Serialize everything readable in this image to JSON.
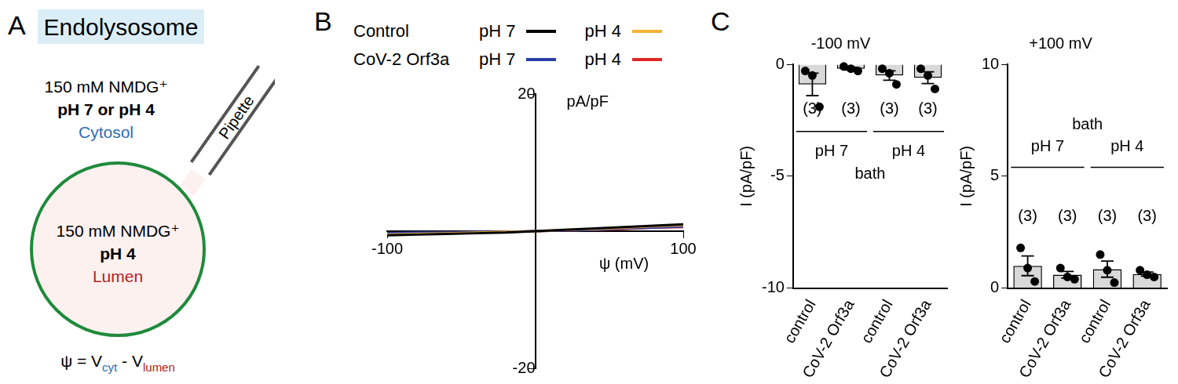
{
  "diagram": {
    "panel": "A",
    "title": "Endolysosome",
    "cytosol": {
      "solution": "150 mM NMDG⁺",
      "ph": "pH 7 or pH 4",
      "name": "Cytosol"
    },
    "pipette": "Pipette",
    "lumen": {
      "solution": "150 mM NMDG⁺",
      "ph": "pH 4",
      "name": "Lumen"
    },
    "equation": {
      "left": "ψ = V",
      "sub_1": "cyt",
      "middle": " - V",
      "sub_2": "lumen"
    }
  },
  "chart_data": [
    {
      "panel": "B",
      "type": "line",
      "x_label": "ψ (mV)",
      "y_label": "pA/pF",
      "x": [
        -100,
        -80,
        -60,
        -40,
        -20,
        0,
        20,
        40,
        60,
        80,
        100
      ],
      "series": [
        {
          "group": "Control",
          "name": "pH 7",
          "color": "#000000",
          "values": [
            -0.6,
            -0.5,
            -0.4,
            -0.3,
            -0.2,
            0,
            0.2,
            0.4,
            0.6,
            0.8,
            1.0
          ]
        },
        {
          "group": "Control",
          "name": "pH 4",
          "color": "#f5b335",
          "values": [
            -0.5,
            -0.4,
            -0.3,
            -0.2,
            -0.1,
            0,
            0.2,
            0.3,
            0.5,
            0.7,
            0.9
          ]
        },
        {
          "group": "CoV-2 Orf3a",
          "name": "pH 7",
          "color": "#2b3fa8",
          "values": [
            -0.3,
            -0.2,
            -0.2,
            -0.1,
            -0.1,
            0,
            0.1,
            0.2,
            0.4,
            0.5,
            0.7
          ]
        },
        {
          "group": "CoV-2 Orf3a",
          "name": "pH 4",
          "color": "#e02727",
          "values": [
            -0.4,
            -0.3,
            -0.2,
            -0.2,
            -0.1,
            0,
            0.1,
            0.2,
            0.3,
            0.5,
            0.6
          ]
        }
      ],
      "xlim": [
        -100,
        100
      ],
      "xticks": [
        -100,
        100
      ],
      "ylim": [
        -20,
        20
      ],
      "yticks": [
        -20,
        20
      ],
      "grid": false,
      "legend": "top"
    },
    {
      "panel": "C",
      "type": "bar",
      "title": "-100 mV",
      "y_label": "I (pA/pF)",
      "categories": [
        "control",
        "CoV-2 Orf3a",
        "control",
        "CoV-2 Orf3a"
      ],
      "values": [
        -0.9,
        -0.2,
        -0.5,
        -0.6
      ],
      "errors": [
        0.5,
        0.06,
        0.21,
        0.26
      ],
      "points": [
        [
          -0.3,
          -0.5,
          -1.9
        ],
        [
          -0.1,
          -0.2,
          -0.3
        ],
        [
          -0.2,
          -0.4,
          -0.9
        ],
        [
          -0.2,
          -0.5,
          -1.1
        ]
      ],
      "n_labels": [
        "(3)",
        "(3)",
        "(3)",
        "(3)"
      ],
      "groups": [
        "pH 7",
        "pH 4"
      ],
      "group_title": "bath",
      "color": "#d9d9d9",
      "ylim": [
        -10,
        0
      ],
      "yticks": [
        -10,
        -5,
        0
      ],
      "grid": false
    },
    {
      "type": "bar",
      "title": "+100 mV",
      "y_label": "I (pA/pF)",
      "categories": [
        "control",
        "CoV-2 Orf3a",
        "control",
        "CoV-2 Orf3a"
      ],
      "values": [
        1.0,
        0.6,
        0.85,
        0.63
      ],
      "errors": [
        0.44,
        0.15,
        0.36,
        0.09
      ],
      "points": [
        [
          1.8,
          0.9,
          0.3
        ],
        [
          0.9,
          0.5,
          0.4
        ],
        [
          1.5,
          0.8,
          0.25
        ],
        [
          0.8,
          0.6,
          0.5
        ]
      ],
      "n_labels": [
        "(3)",
        "(3)",
        "(3)",
        "(3)"
      ],
      "groups": [
        "pH 7",
        "pH 4"
      ],
      "group_title": "bath",
      "color": "#d9d9d9",
      "ylim": [
        0,
        10
      ],
      "yticks": [
        0,
        5,
        10
      ],
      "grid": false
    }
  ]
}
